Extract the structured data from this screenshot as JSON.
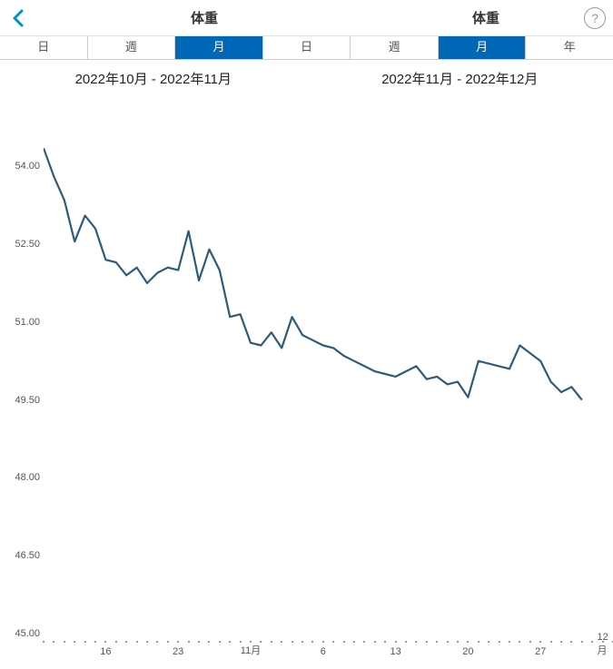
{
  "header": {
    "title_left": "体重",
    "title_right": "体重",
    "help": "?"
  },
  "segments": {
    "items": [
      "日",
      "週",
      "月",
      "日",
      "週",
      "月",
      "年"
    ],
    "active_indices": [
      2,
      5
    ]
  },
  "ranges": {
    "left": "2022年10月 - 2022年11月",
    "right": "2022年11月 - 2022年12月"
  },
  "chart": {
    "type": "line",
    "line_color": "#2e5b7a",
    "line_width": 2.2,
    "background_color": "#ffffff",
    "ylim": [
      45.0,
      55.0
    ],
    "ytick_step": 1.5,
    "yticks": [
      54.0,
      52.5,
      51.0,
      49.5,
      48.0,
      46.5,
      45.0
    ],
    "ytick_labels": [
      "54.00",
      "52.50",
      "51.00",
      "49.50",
      "48.00",
      "46.50",
      "45.00"
    ],
    "tick_fontsize": 11,
    "tick_color": "#555555",
    "x_start_day": 10,
    "x_days": 55,
    "x_major_labels": [
      {
        "day": 16,
        "label": "16"
      },
      {
        "day": 23,
        "label": "23"
      },
      {
        "day": 30,
        "label": "11月"
      },
      {
        "day": 37,
        "label": "6"
      },
      {
        "day": 44,
        "label": "13"
      },
      {
        "day": 51,
        "label": "20"
      },
      {
        "day": 58,
        "label": "27"
      },
      {
        "day": 64,
        "label": "12月"
      }
    ],
    "series": [
      {
        "x": 10,
        "y": 54.35
      },
      {
        "x": 11,
        "y": 53.8
      },
      {
        "x": 12,
        "y": 53.35
      },
      {
        "x": 13,
        "y": 52.55
      },
      {
        "x": 14,
        "y": 53.05
      },
      {
        "x": 15,
        "y": 52.8
      },
      {
        "x": 16,
        "y": 52.2
      },
      {
        "x": 17,
        "y": 52.15
      },
      {
        "x": 18,
        "y": 51.9
      },
      {
        "x": 19,
        "y": 52.05
      },
      {
        "x": 20,
        "y": 51.75
      },
      {
        "x": 21,
        "y": 51.95
      },
      {
        "x": 22,
        "y": 52.05
      },
      {
        "x": 23,
        "y": 52.0
      },
      {
        "x": 24,
        "y": 52.75
      },
      {
        "x": 25,
        "y": 51.8
      },
      {
        "x": 26,
        "y": 52.4
      },
      {
        "x": 27,
        "y": 52.0
      },
      {
        "x": 28,
        "y": 51.1
      },
      {
        "x": 29,
        "y": 51.15
      },
      {
        "x": 30,
        "y": 50.6
      },
      {
        "x": 31,
        "y": 50.55
      },
      {
        "x": 32,
        "y": 50.8
      },
      {
        "x": 33,
        "y": 50.5
      },
      {
        "x": 34,
        "y": 51.1
      },
      {
        "x": 35,
        "y": 50.75
      },
      {
        "x": 36,
        "y": 50.65
      },
      {
        "x": 37,
        "y": 50.55
      },
      {
        "x": 38,
        "y": 50.5
      },
      {
        "x": 39,
        "y": 50.35
      },
      {
        "x": 40,
        "y": 50.25
      },
      {
        "x": 41,
        "y": 50.15
      },
      {
        "x": 42,
        "y": 50.05
      },
      {
        "x": 43,
        "y": 50.0
      },
      {
        "x": 44,
        "y": 49.95
      },
      {
        "x": 45,
        "y": 50.05
      },
      {
        "x": 46,
        "y": 50.15
      },
      {
        "x": 47,
        "y": 49.9
      },
      {
        "x": 48,
        "y": 49.95
      },
      {
        "x": 49,
        "y": 49.8
      },
      {
        "x": 50,
        "y": 49.85
      },
      {
        "x": 51,
        "y": 49.55
      },
      {
        "x": 52,
        "y": 50.25
      },
      {
        "x": 53,
        "y": 50.2
      },
      {
        "x": 54,
        "y": 50.15
      },
      {
        "x": 55,
        "y": 50.1
      },
      {
        "x": 56,
        "y": 50.55
      },
      {
        "x": 57,
        "y": 50.4
      },
      {
        "x": 58,
        "y": 50.25
      },
      {
        "x": 59,
        "y": 49.85
      },
      {
        "x": 60,
        "y": 49.65
      },
      {
        "x": 61,
        "y": 49.75
      },
      {
        "x": 62,
        "y": 49.5
      }
    ]
  }
}
